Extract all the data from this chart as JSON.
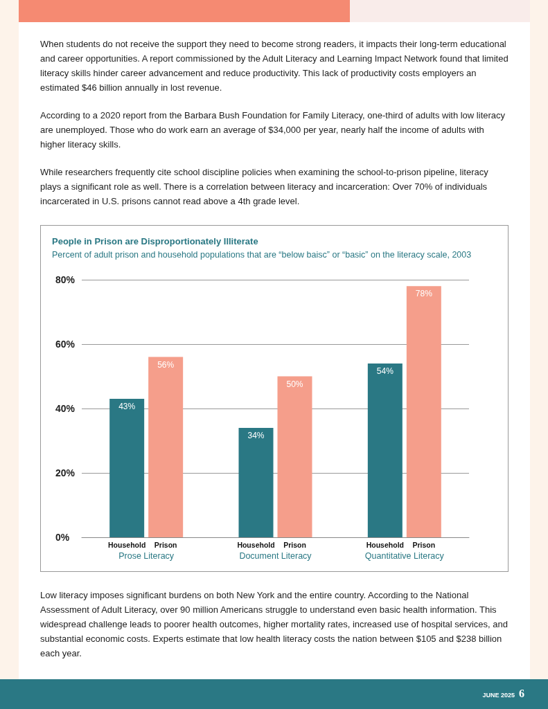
{
  "chart_data": {
    "type": "bar",
    "title": "People in Prison are Disproportionately Illiterate",
    "subtitle": "Percent of adult prison and household populations that are “below baisc” or “basic” on the literacy scale, 2003",
    "categories": [
      "Prose Literacy",
      "Document Literacy",
      "Quantitative Literacy"
    ],
    "series": [
      {
        "name": "Household",
        "color": "#2a7884",
        "values": [
          43,
          34,
          54
        ],
        "value_labels": [
          "43%",
          "34%",
          "54%"
        ]
      },
      {
        "name": "Prison",
        "color": "#f59e8b",
        "values": [
          56,
          50,
          78
        ],
        "value_labels": [
          "56%",
          "50%",
          "78%"
        ]
      }
    ],
    "ylim": [
      0,
      80
    ],
    "yticks": [
      {
        "value": 0,
        "label": "0%"
      },
      {
        "value": 20,
        "label": "20%"
      },
      {
        "value": 40,
        "label": "40%"
      },
      {
        "value": 60,
        "label": "60%"
      },
      {
        "value": 80,
        "label": "80%"
      }
    ],
    "grid": "y",
    "legend": false,
    "annotations": [
      "When students do not receive the support they need to become strong readers, it impacts their long-term educational and career opportunities. A report commissioned by the Adult Literacy and Learning Impact Network found that limited literacy skills hinder career advancement and reduce productivity. This lack of productivity costs employers an estimated $46 billion annually in lost revenue.",
      "According to a 2020 report from the Barbara Bush Foundation for Family Literacy, one-third of adults with low literacy are unemployed. Those who do work earn an average of $34,000 per year, nearly half the income of adults with higher literacy skills.",
      "While researchers frequently cite school discipline policies when examining the school-to-prison pipeline, literacy plays a significant role as well. There is a correlation between literacy and incarceration: Over 70% of individuals incarcerated in U.S. prisons cannot read above a 4th grade level.",
      "Low literacy imposes significant burdens on both New York and the entire country. According to the National Assessment of Adult Literacy, over 90 million Americans struggle to understand even basic health information. This widespread challenge leads to poorer health outcomes, higher mortality rates, increased use of hospital services, and substantial economic costs. Experts estimate that low health literacy costs the nation between $105 and $238 billion each year.",
      "JUNE 2025",
      "6"
    ]
  }
}
